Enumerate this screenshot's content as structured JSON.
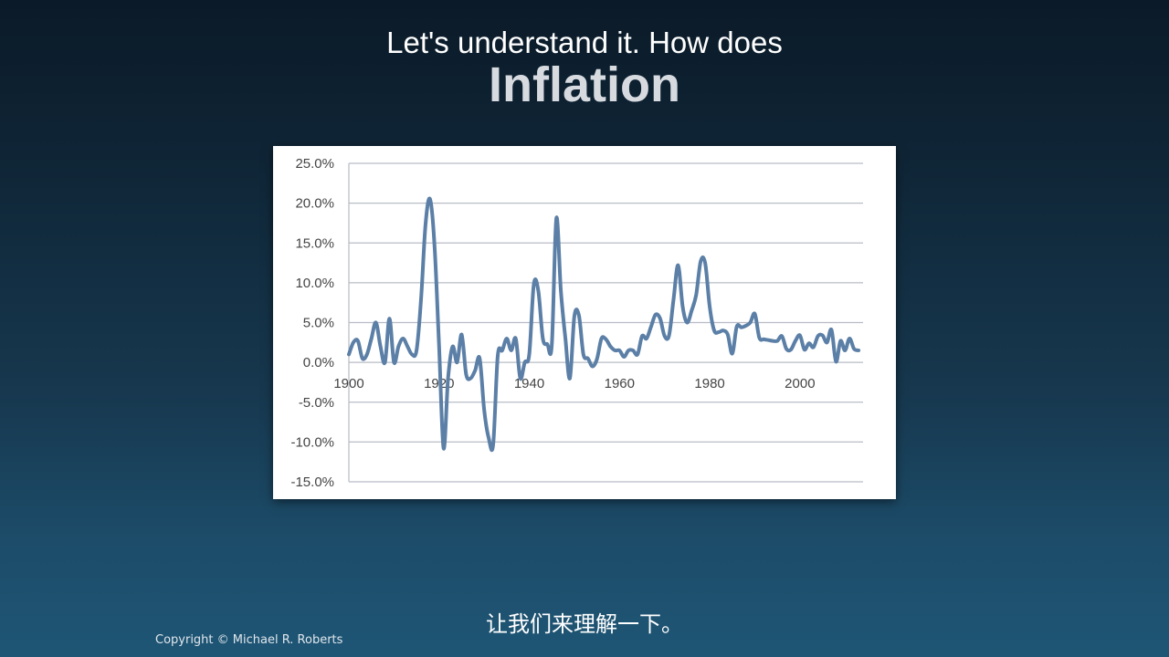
{
  "slide": {
    "title_line1": "Let's understand it. How does",
    "title_line2": "Inflation",
    "subtitle": "让我们来理解一下。",
    "copyright": "Copyright © Michael R. Roberts"
  },
  "colors": {
    "line": "#5b7fa6",
    "grid": "#b8bcc6"
  },
  "chart_data": {
    "type": "line",
    "ylim": [
      -15,
      25
    ],
    "xlim": [
      1900,
      2014
    ],
    "yticks": [
      25,
      20,
      15,
      10,
      5,
      0,
      -5,
      -10,
      -15
    ],
    "ytick_labels": [
      "25.0%",
      "20.0%",
      "15.0%",
      "10.0%",
      "5.0%",
      "0.0%",
      "-5.0%",
      "-10.0%",
      "-15.0%"
    ],
    "xticks": [
      1900,
      1920,
      1940,
      1960,
      1980,
      2000
    ],
    "xtick_labels": [
      "1900",
      "1920",
      "1940",
      "1960",
      "1980",
      "2000"
    ],
    "grid": true,
    "series": [
      {
        "x": [
          1900,
          1901,
          1902,
          1903,
          1904,
          1905,
          1906,
          1907,
          1908,
          1909,
          1910,
          1911,
          1912,
          1913,
          1914,
          1915,
          1916,
          1917,
          1918,
          1919,
          1920,
          1921,
          1922,
          1923,
          1924,
          1925,
          1926,
          1927,
          1928,
          1929,
          1930,
          1931,
          1932,
          1933,
          1934,
          1935,
          1936,
          1937,
          1938,
          1939,
          1940,
          1941,
          1942,
          1943,
          1944,
          1945,
          1946,
          1947,
          1948,
          1949,
          1950,
          1951,
          1952,
          1953,
          1954,
          1955,
          1956,
          1957,
          1958,
          1959,
          1960,
          1961,
          1962,
          1963,
          1964,
          1965,
          1966,
          1967,
          1968,
          1969,
          1970,
          1971,
          1972,
          1973,
          1974,
          1975,
          1976,
          1977,
          1978,
          1979,
          1980,
          1981,
          1982,
          1983,
          1984,
          1985,
          1986,
          1987,
          1988,
          1989,
          1990,
          1991,
          1992,
          1993,
          1994,
          1995,
          1996,
          1997,
          1998,
          1999,
          2000,
          2001,
          2002,
          2003,
          2004,
          2005,
          2006,
          2007,
          2008,
          2009,
          2010,
          2011,
          2012,
          2013
        ],
        "y": [
          1.0,
          2.5,
          2.7,
          0.5,
          1.0,
          3.0,
          5.0,
          2.0,
          0.0,
          5.5,
          0.0,
          2.0,
          3.0,
          2.0,
          1.0,
          1.5,
          7.9,
          17.4,
          20.5,
          14.6,
          2.0,
          -10.8,
          -2.0,
          2.0,
          0.0,
          3.5,
          -1.5,
          -2.0,
          -1.0,
          0.5,
          -6.0,
          -9.5,
          -10.3,
          0.8,
          1.5,
          3.0,
          1.5,
          3.0,
          -2.0,
          0.0,
          1.0,
          9.8,
          9.0,
          3.0,
          2.3,
          2.2,
          18.1,
          9.0,
          3.0,
          -2.0,
          5.8,
          5.9,
          1.0,
          0.5,
          -0.5,
          0.4,
          3.0,
          2.9,
          2.0,
          1.5,
          1.5,
          0.7,
          1.5,
          1.5,
          1.0,
          3.3,
          3.0,
          4.5,
          6.0,
          5.5,
          3.3,
          3.4,
          8.0,
          12.2,
          7.0,
          5.0,
          6.5,
          8.5,
          12.7,
          12.5,
          7.0,
          4.0,
          3.8,
          4.0,
          3.5,
          1.1,
          4.5,
          4.4,
          4.6,
          5.0,
          6.1,
          3.1,
          2.9,
          2.8,
          2.7,
          2.7,
          3.3,
          1.7,
          1.6,
          2.7,
          3.4,
          1.6,
          2.4,
          1.9,
          3.3,
          3.4,
          2.5,
          4.1,
          0.1,
          2.7,
          1.5,
          3.0,
          1.7,
          1.5
        ]
      }
    ]
  }
}
